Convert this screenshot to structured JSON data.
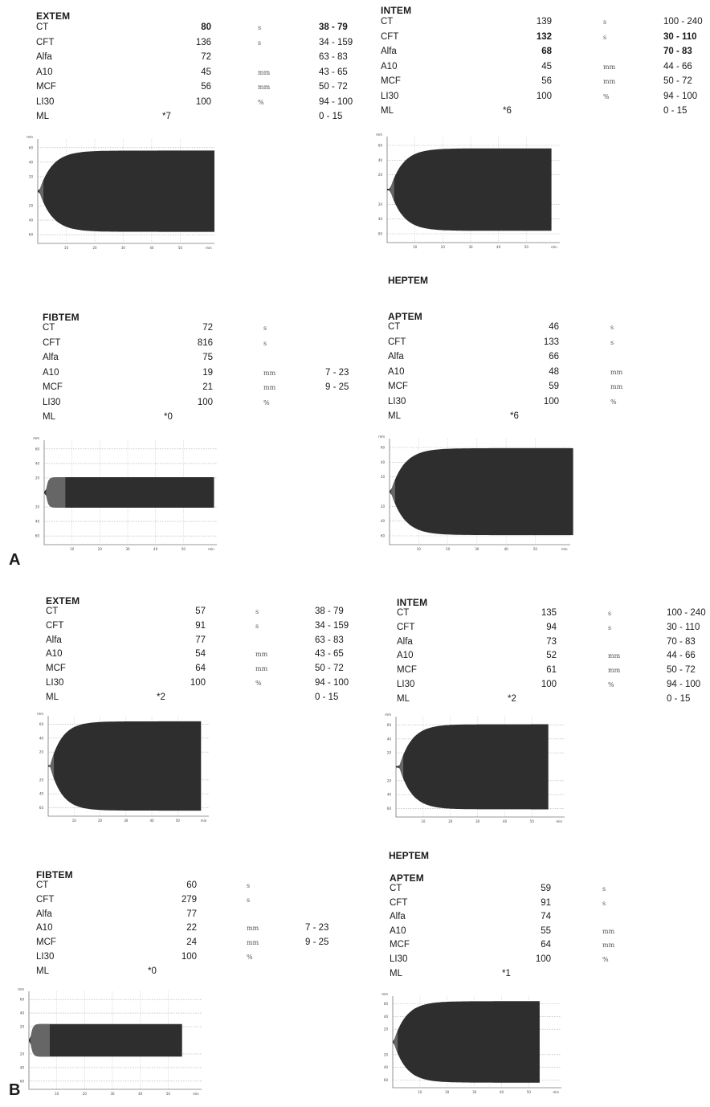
{
  "section_labels": {
    "a": "A",
    "b": "B"
  },
  "heptem": {
    "a": "HEPTEM",
    "b": "HEPTEM"
  },
  "chart_data": [
    {
      "id": "a_extem",
      "type": "table",
      "title": "EXTEM",
      "rows": [
        {
          "label": "CT",
          "value": "80",
          "unit": "s",
          "ref": "38 - 79",
          "bold": true
        },
        {
          "label": "CFT",
          "value": "136",
          "unit": "s",
          "ref": "34 - 159"
        },
        {
          "label": "Alfa",
          "value": "72",
          "unit": "",
          "ref": "63 - 83"
        },
        {
          "label": "A10",
          "value": "45",
          "unit": "mm",
          "ref": "43 - 65"
        },
        {
          "label": "MCF",
          "value": "56",
          "unit": "mm",
          "ref": "50 - 72"
        },
        {
          "label": "LI30",
          "value": "100",
          "unit": "%",
          "ref": "94 - 100"
        },
        {
          "label": "ML",
          "value": "*7",
          "unit": "",
          "ref": "0 - 15"
        }
      ],
      "trace": {
        "ct_min": 0.5,
        "mcf_mm": 56,
        "end_min": 62,
        "x_ticks": [
          "10",
          "20",
          "30",
          "40",
          "50",
          "min"
        ],
        "y_ticks": [
          "mm",
          "60",
          "40",
          "20",
          "20",
          "40",
          "60"
        ]
      }
    },
    {
      "id": "a_intem",
      "type": "table",
      "title": "INTEM",
      "rows": [
        {
          "label": "CT",
          "value": "139",
          "unit": "s",
          "ref": "100 - 240"
        },
        {
          "label": "CFT",
          "value": "132",
          "unit": "s",
          "ref": "30 - 110",
          "bold": true
        },
        {
          "label": "Alfa",
          "value": "68",
          "unit": "",
          "ref": "70 - 83",
          "bold": true
        },
        {
          "label": "A10",
          "value": "45",
          "unit": "mm",
          "ref": "44 - 66"
        },
        {
          "label": "MCF",
          "value": "56",
          "unit": "mm",
          "ref": "50 - 72"
        },
        {
          "label": "LI30",
          "value": "100",
          "unit": "%",
          "ref": "94 - 100"
        },
        {
          "label": "ML",
          "value": "*6",
          "unit": "",
          "ref": "0 - 15"
        }
      ],
      "trace": {
        "ct_min": 1.0,
        "mcf_mm": 56,
        "end_min": 59,
        "x_ticks": [
          "10",
          "20",
          "30",
          "40",
          "50",
          "min"
        ],
        "y_ticks": [
          "mm",
          "60",
          "40",
          "20",
          "20",
          "40",
          "60"
        ]
      }
    },
    {
      "id": "a_fibtem",
      "type": "table",
      "title": "FIBTEM",
      "rows": [
        {
          "label": "CT",
          "value": "72",
          "unit": "s",
          "ref": ""
        },
        {
          "label": "CFT",
          "value": "816",
          "unit": "s",
          "ref": ""
        },
        {
          "label": "Alfa",
          "value": "75",
          "unit": "",
          "ref": ""
        },
        {
          "label": "A10",
          "value": "19",
          "unit": "mm",
          "ref": "7 - 23"
        },
        {
          "label": "MCF",
          "value": "21",
          "unit": "mm",
          "ref": "9 - 25"
        },
        {
          "label": "LI30",
          "value": "100",
          "unit": "%",
          "ref": ""
        },
        {
          "label": "ML",
          "value": "*0",
          "unit": "",
          "ref": ""
        }
      ],
      "trace": {
        "ct_min": 0.6,
        "mcf_mm": 21,
        "end_min": 61,
        "fib": true,
        "x_ticks": [
          "10",
          "20",
          "30",
          "40",
          "50",
          "min"
        ],
        "y_ticks": [
          "mm",
          "60",
          "40",
          "20",
          "20",
          "40",
          "60"
        ]
      }
    },
    {
      "id": "a_aptem",
      "type": "table",
      "title": "APTEM",
      "rows": [
        {
          "label": "CT",
          "value": "46",
          "unit": "s",
          "ref": ""
        },
        {
          "label": "CFT",
          "value": "133",
          "unit": "s",
          "ref": ""
        },
        {
          "label": "Alfa",
          "value": "66",
          "unit": "",
          "ref": ""
        },
        {
          "label": "A10",
          "value": "48",
          "unit": "mm",
          "ref": ""
        },
        {
          "label": "MCF",
          "value": "59",
          "unit": "mm",
          "ref": ""
        },
        {
          "label": "LI30",
          "value": "100",
          "unit": "%",
          "ref": ""
        },
        {
          "label": "ML",
          "value": "*6",
          "unit": "",
          "ref": ""
        }
      ],
      "trace": {
        "ct_min": 0.4,
        "mcf_mm": 59,
        "end_min": 63,
        "x_ticks": [
          "10",
          "20",
          "30",
          "40",
          "50",
          "min"
        ],
        "y_ticks": [
          "mm",
          "60",
          "40",
          "20",
          "20",
          "40",
          "60"
        ]
      }
    },
    {
      "id": "b_extem",
      "type": "table",
      "title": "EXTEM",
      "rows": [
        {
          "label": "CT",
          "value": "57",
          "unit": "s",
          "ref": "38 - 79"
        },
        {
          "label": "CFT",
          "value": "91",
          "unit": "s",
          "ref": "34 - 159"
        },
        {
          "label": "Alfa",
          "value": "77",
          "unit": "",
          "ref": "63 - 83"
        },
        {
          "label": "A10",
          "value": "54",
          "unit": "mm",
          "ref": "43 - 65"
        },
        {
          "label": "MCF",
          "value": "64",
          "unit": "mm",
          "ref": "50 - 72"
        },
        {
          "label": "LI30",
          "value": "100",
          "unit": "%",
          "ref": "94 - 100"
        },
        {
          "label": "ML",
          "value": "*2",
          "unit": "",
          "ref": "0 - 15"
        }
      ],
      "trace": {
        "ct_min": 0.7,
        "mcf_mm": 64,
        "end_min": 59,
        "x_ticks": [
          "10",
          "20",
          "30",
          "40",
          "50",
          "min"
        ],
        "y_ticks": [
          "mm",
          "60",
          "40",
          "20",
          "20",
          "40",
          "60"
        ]
      }
    },
    {
      "id": "b_intem",
      "type": "table",
      "title": "INTEM",
      "rows": [
        {
          "label": "CT",
          "value": "135",
          "unit": "s",
          "ref": "100 - 240"
        },
        {
          "label": "CFT",
          "value": "94",
          "unit": "s",
          "ref": "30 - 110"
        },
        {
          "label": "Alfa",
          "value": "73",
          "unit": "",
          "ref": "70 - 83"
        },
        {
          "label": "A10",
          "value": "52",
          "unit": "mm",
          "ref": "44 - 66"
        },
        {
          "label": "MCF",
          "value": "61",
          "unit": "mm",
          "ref": "50 - 72"
        },
        {
          "label": "LI30",
          "value": "100",
          "unit": "%",
          "ref": "94 - 100"
        },
        {
          "label": "ML",
          "value": "*2",
          "unit": "",
          "ref": "0 - 15"
        }
      ],
      "trace": {
        "ct_min": 1.2,
        "mcf_mm": 61,
        "end_min": 56,
        "x_ticks": [
          "10",
          "20",
          "30",
          "40",
          "50",
          "min"
        ],
        "y_ticks": [
          "mm",
          "60",
          "40",
          "20",
          "20",
          "40",
          "60"
        ]
      }
    },
    {
      "id": "b_fibtem",
      "type": "table",
      "title": "FIBTEM",
      "rows": [
        {
          "label": "CT",
          "value": "60",
          "unit": "s",
          "ref": ""
        },
        {
          "label": "CFT",
          "value": "279",
          "unit": "s",
          "ref": ""
        },
        {
          "label": "Alfa",
          "value": "77",
          "unit": "",
          "ref": ""
        },
        {
          "label": "A10",
          "value": "22",
          "unit": "mm",
          "ref": "7 - 23"
        },
        {
          "label": "MCF",
          "value": "24",
          "unit": "mm",
          "ref": "9 - 25"
        },
        {
          "label": "LI30",
          "value": "100",
          "unit": "%",
          "ref": ""
        },
        {
          "label": "ML",
          "value": "*0",
          "unit": "",
          "ref": ""
        }
      ],
      "trace": {
        "ct_min": 0.5,
        "mcf_mm": 24,
        "end_min": 55,
        "fib": true,
        "x_ticks": [
          "10",
          "20",
          "30",
          "40",
          "50",
          "min"
        ],
        "y_ticks": [
          "mm",
          "60",
          "40",
          "20",
          "20",
          "40",
          "60"
        ]
      }
    },
    {
      "id": "b_aptem",
      "type": "table",
      "title": "APTEM",
      "rows": [
        {
          "label": "CT",
          "value": "59",
          "unit": "s",
          "ref": ""
        },
        {
          "label": "CFT",
          "value": "91",
          "unit": "s",
          "ref": ""
        },
        {
          "label": "Alfa",
          "value": "74",
          "unit": "",
          "ref": ""
        },
        {
          "label": "A10",
          "value": "55",
          "unit": "mm",
          "ref": ""
        },
        {
          "label": "MCF",
          "value": "64",
          "unit": "mm",
          "ref": ""
        },
        {
          "label": "LI30",
          "value": "100",
          "unit": "%",
          "ref": ""
        },
        {
          "label": "ML",
          "value": "*1",
          "unit": "",
          "ref": ""
        }
      ],
      "trace": {
        "ct_min": 0.3,
        "mcf_mm": 64,
        "end_min": 54,
        "x_ticks": [
          "10",
          "20",
          "30",
          "40",
          "50",
          "min"
        ],
        "y_ticks": [
          "mm",
          "60",
          "40",
          "20",
          "20",
          "40",
          "60"
        ]
      }
    }
  ]
}
